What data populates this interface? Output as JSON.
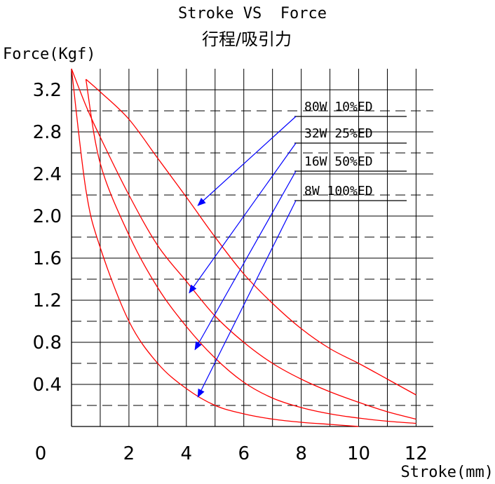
{
  "chart_data": {
    "type": "line",
    "title": "Stroke VS  Force",
    "subtitle": "行程/吸引力",
    "xlabel": "Stroke(mm)",
    "ylabel": "Force(Kgf)",
    "xlim": [
      0,
      12.6
    ],
    "ylim": [
      0,
      3.4
    ],
    "x_ticks": [
      "0",
      "2",
      "4",
      "6",
      "8",
      "10",
      "12"
    ],
    "y_ticks": [
      "0.4",
      "0.8",
      "1.2",
      "1.6",
      "2.0",
      "2.4",
      "2.8",
      "3.2"
    ],
    "grid": true,
    "series": [
      {
        "name": "80W 10%ED",
        "color": "#ff0000",
        "x": [
          0.5,
          1,
          2,
          3,
          4,
          5,
          6,
          7,
          8,
          9,
          10,
          11,
          12
        ],
        "y": [
          3.3,
          3.18,
          2.92,
          2.55,
          2.18,
          1.8,
          1.45,
          1.17,
          0.93,
          0.74,
          0.6,
          0.45,
          0.3
        ]
      },
      {
        "name": "32W 25%ED",
        "color": "#ff0000",
        "x": [
          0,
          0.5,
          1,
          2,
          3,
          4,
          5,
          6,
          7,
          8,
          9,
          10,
          11,
          12
        ],
        "y": [
          3.4,
          3.05,
          2.75,
          2.2,
          1.72,
          1.38,
          1.05,
          0.8,
          0.6,
          0.45,
          0.33,
          0.23,
          0.14,
          0.07
        ]
      },
      {
        "name": "16W  50%ED",
        "color": "#ff0000",
        "x": [
          0.5,
          1,
          2,
          3,
          4,
          5,
          6,
          7,
          8,
          9,
          10,
          11,
          12
        ],
        "y": [
          3.3,
          2.5,
          1.82,
          1.32,
          0.95,
          0.65,
          0.42,
          0.27,
          0.18,
          0.12,
          0.08,
          0.05,
          0.03
        ]
      },
      {
        "name": "8W 100%ED",
        "color": "#ff0000",
        "x": [
          0,
          0.5,
          1,
          2,
          3,
          4,
          5,
          6,
          7,
          8,
          9,
          10
        ],
        "y": [
          3.4,
          2.25,
          1.7,
          1.0,
          0.6,
          0.36,
          0.2,
          0.12,
          0.07,
          0.04,
          0.02,
          0.0
        ]
      }
    ],
    "callouts": [
      {
        "label": "80W 10%ED",
        "x": 4.4,
        "y": 2.1,
        "color": "#0000ff"
      },
      {
        "label": "32W 25%ED",
        "x": 4.1,
        "y": 1.27,
        "color": "#0000ff"
      },
      {
        "label": "16W  50%ED",
        "x": 4.3,
        "y": 0.73,
        "color": "#0000ff"
      },
      {
        "label": "8W 100%ED",
        "x": 4.4,
        "y": 0.28,
        "color": "#0000ff"
      }
    ],
    "colors": {
      "grid": "#000000",
      "curve": "#ff0000",
      "arrow": "#0000ff"
    }
  }
}
